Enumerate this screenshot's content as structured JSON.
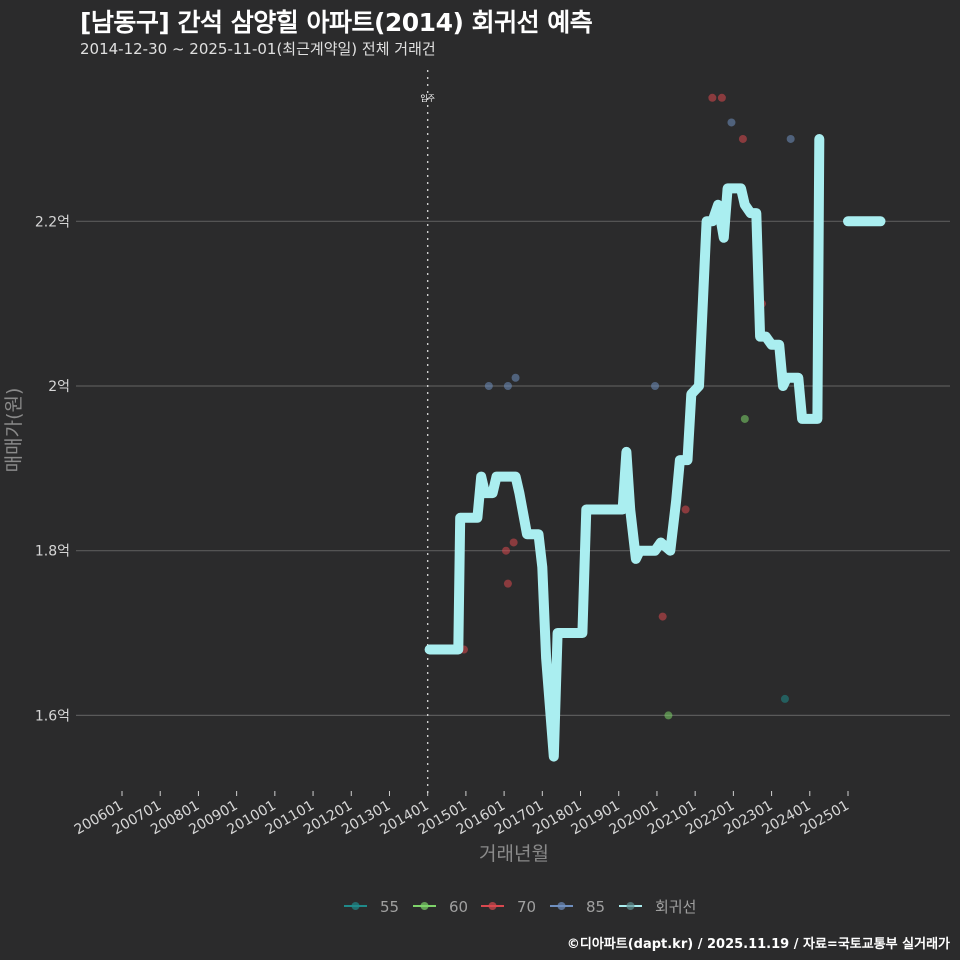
{
  "header": {
    "title": "[남동구] 간석 삼양힐 아파트(2014) 회귀선 예측",
    "subtitle": "2014-12-30 ~ 2025-11-01(최근계약일) 전체 거래건"
  },
  "caption": "©디아파트(dapt.kr) / 2025.11.19 / 자료=국토교통부 실거래가",
  "colors": {
    "background": "#2b2b2c",
    "grid": "#5a5a5a",
    "s55": "#1f8a8a",
    "s60": "#7ed36a",
    "s70": "#d9484f",
    "s85": "#6f8fbf",
    "regression": "#aaeef0"
  },
  "chart_data": {
    "type": "line",
    "title": "[남동구] 간석 삼양힐 아파트(2014) 회귀선 예측",
    "subtitle": "2014-12-30 ~ 2025-11-01(최근계약일) 전체 거래건",
    "xlabel": "거래년월",
    "ylabel": "매매가(원)",
    "x_ticks": [
      "200601",
      "200701",
      "200801",
      "200901",
      "201001",
      "201101",
      "201201",
      "201301",
      "201401",
      "201501",
      "201601",
      "201701",
      "201801",
      "201901",
      "202001",
      "202101",
      "202201",
      "202301",
      "202401",
      "202501"
    ],
    "y_ticks": [
      "1.6억",
      "1.8억",
      "2억",
      "2.2억"
    ],
    "y_tick_values": [
      1.6,
      1.8,
      2.0,
      2.2
    ],
    "ylim": [
      1.52,
      2.36
    ],
    "grid": true,
    "annotation": {
      "label": "입주",
      "x": "201401"
    },
    "legend": [
      "55",
      "60",
      "70",
      "85",
      "회귀선"
    ],
    "legend_position": "bottom",
    "scatter_series": [
      {
        "name": "70",
        "points": [
          [
            2014.95,
            1.68
          ],
          [
            2016.05,
            1.8
          ],
          [
            2016.25,
            1.81
          ],
          [
            2016.1,
            1.76
          ],
          [
            2020.15,
            1.72
          ],
          [
            2020.75,
            1.85
          ],
          [
            2021.45,
            2.35
          ],
          [
            2021.7,
            2.35
          ],
          [
            2022.25,
            2.3
          ],
          [
            2022.75,
            2.1
          ]
        ]
      },
      {
        "name": "85",
        "points": [
          [
            2015.6,
            2.0
          ],
          [
            2016.1,
            2.0
          ],
          [
            2016.3,
            2.01
          ],
          [
            2019.95,
            2.0
          ],
          [
            2021.95,
            2.32
          ],
          [
            2023.5,
            2.3
          ]
        ]
      },
      {
        "name": "60",
        "points": [
          [
            2020.3,
            1.6
          ],
          [
            2022.3,
            1.96
          ]
        ]
      },
      {
        "name": "55",
        "points": [
          [
            2023.35,
            1.62
          ]
        ]
      }
    ],
    "regression_series": {
      "name": "회귀선",
      "points": [
        [
          2014.05,
          1.68
        ],
        [
          2014.8,
          1.68
        ],
        [
          2014.85,
          1.84
        ],
        [
          2015.3,
          1.84
        ],
        [
          2015.4,
          1.89
        ],
        [
          2015.5,
          1.87
        ],
        [
          2015.7,
          1.87
        ],
        [
          2015.8,
          1.89
        ],
        [
          2016.3,
          1.89
        ],
        [
          2016.4,
          1.87
        ],
        [
          2016.6,
          1.82
        ],
        [
          2016.9,
          1.82
        ],
        [
          2017.0,
          1.78
        ],
        [
          2017.1,
          1.67
        ],
        [
          2017.3,
          1.55
        ],
        [
          2017.4,
          1.7
        ],
        [
          2018.05,
          1.7
        ],
        [
          2018.15,
          1.85
        ],
        [
          2019.1,
          1.85
        ],
        [
          2019.2,
          1.92
        ],
        [
          2019.3,
          1.85
        ],
        [
          2019.45,
          1.79
        ],
        [
          2019.55,
          1.8
        ],
        [
          2019.95,
          1.8
        ],
        [
          2020.1,
          1.81
        ],
        [
          2020.35,
          1.8
        ],
        [
          2020.5,
          1.86
        ],
        [
          2020.6,
          1.91
        ],
        [
          2020.8,
          1.91
        ],
        [
          2020.9,
          1.99
        ],
        [
          2021.1,
          2.0
        ],
        [
          2021.3,
          2.2
        ],
        [
          2021.45,
          2.2
        ],
        [
          2021.6,
          2.22
        ],
        [
          2021.75,
          2.18
        ],
        [
          2021.85,
          2.24
        ],
        [
          2022.2,
          2.24
        ],
        [
          2022.3,
          2.22
        ],
        [
          2022.45,
          2.21
        ],
        [
          2022.6,
          2.21
        ],
        [
          2022.7,
          2.06
        ],
        [
          2022.85,
          2.06
        ],
        [
          2023.0,
          2.05
        ],
        [
          2023.2,
          2.05
        ],
        [
          2023.3,
          2.0
        ],
        [
          2023.4,
          2.01
        ],
        [
          2023.7,
          2.01
        ],
        [
          2023.8,
          1.96
        ],
        [
          2024.2,
          1.96
        ],
        [
          2024.25,
          2.3
        ],
        [
          2025.0,
          2.2
        ],
        [
          2025.85,
          2.2
        ]
      ],
      "segments_break_before_index": 50
    }
  }
}
